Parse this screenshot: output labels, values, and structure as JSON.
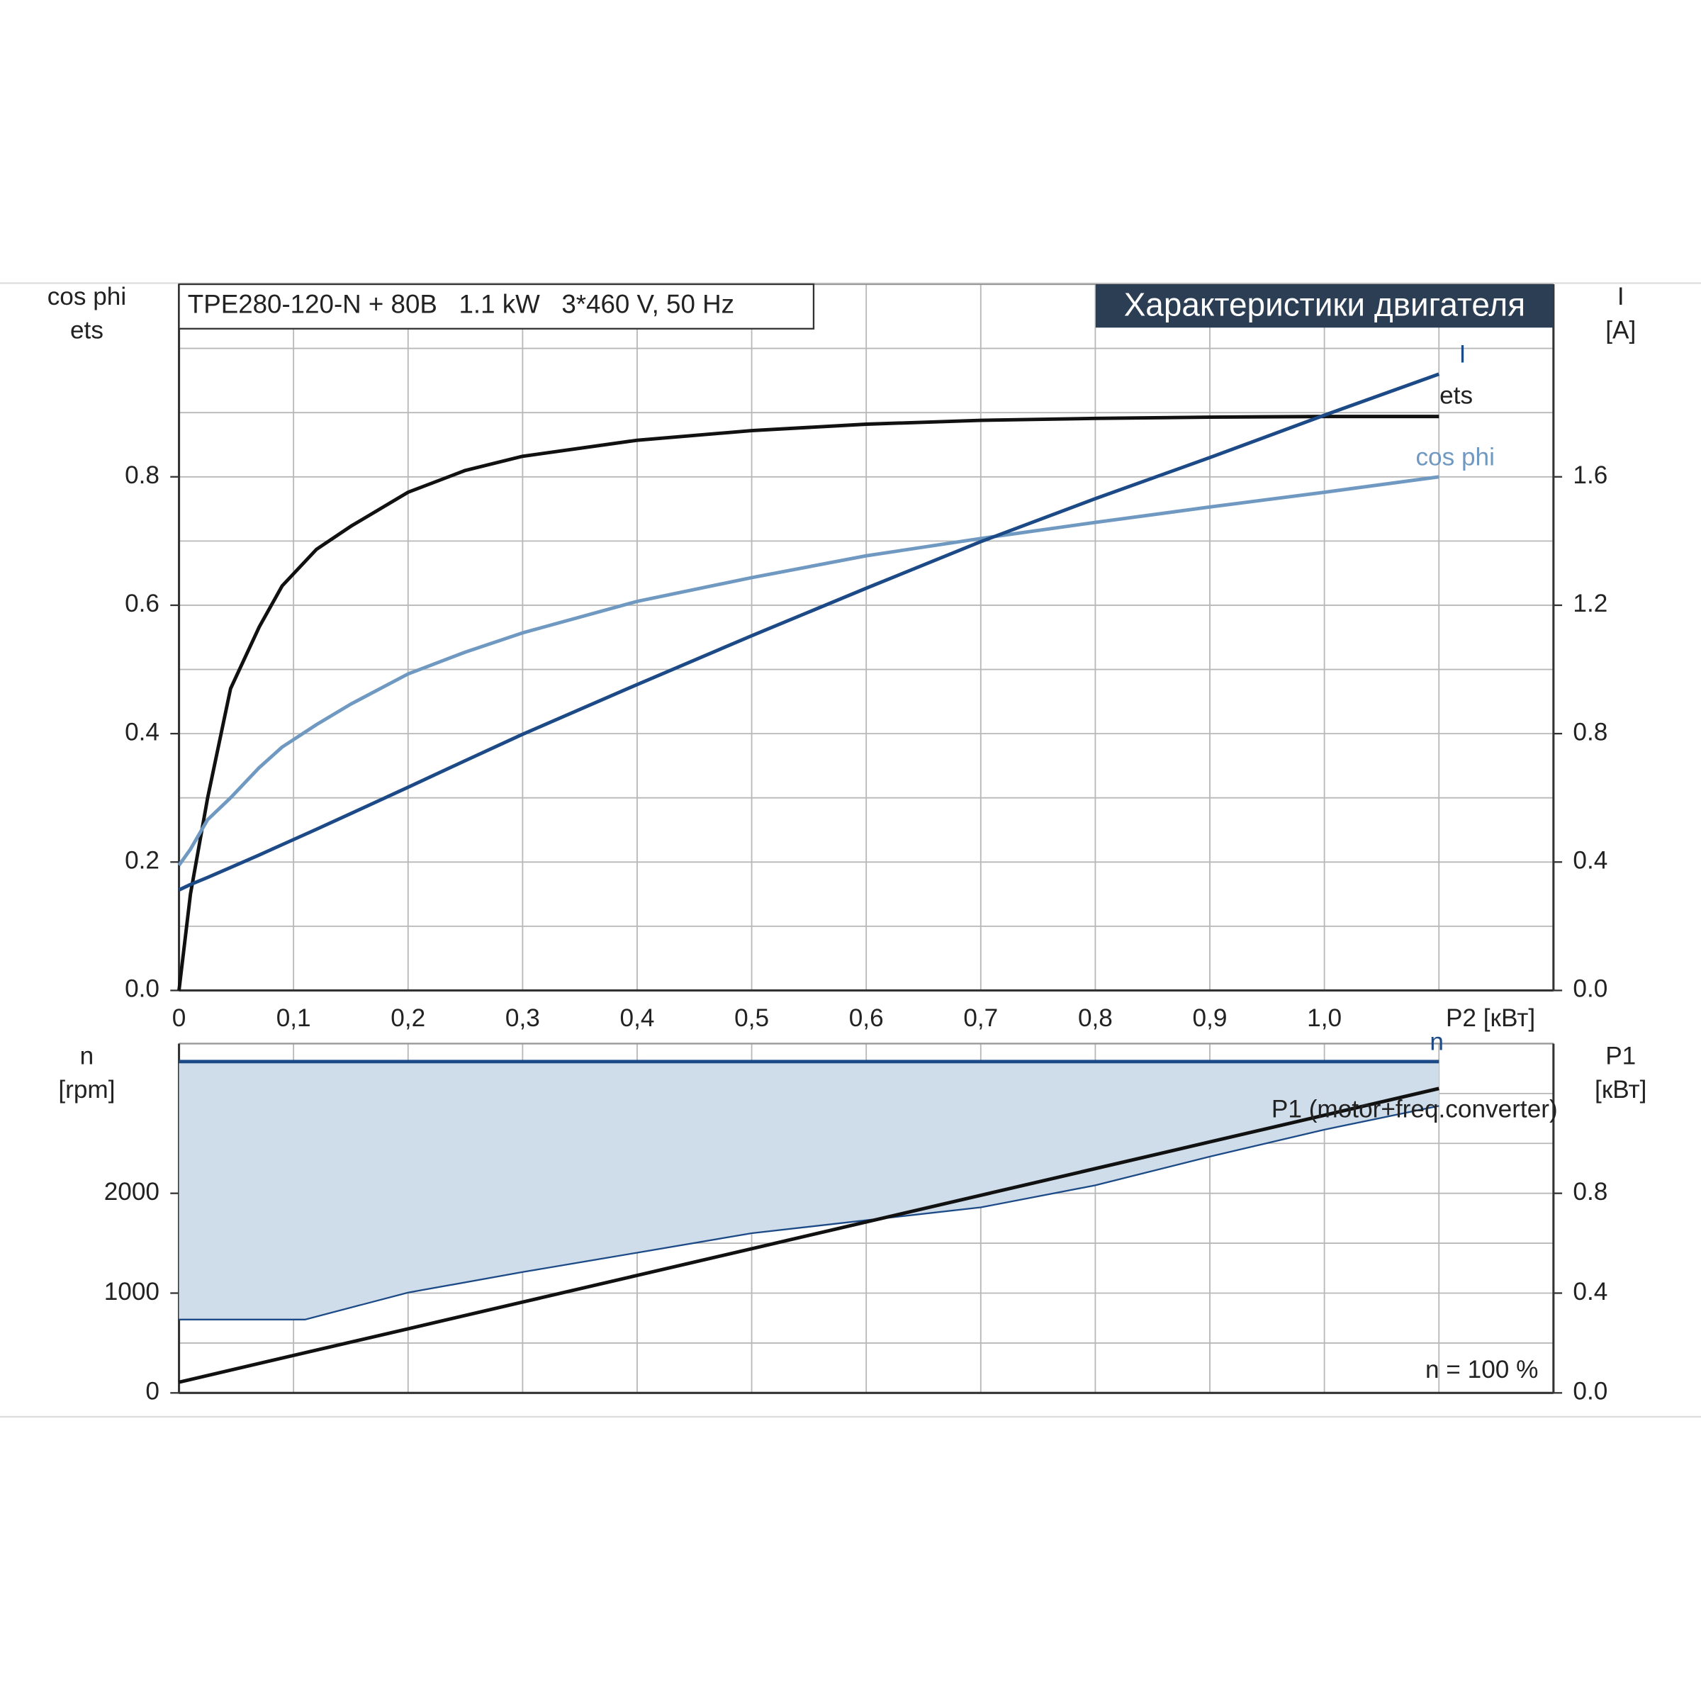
{
  "chart_data": [
    {
      "type": "line",
      "title": "Характеристики двигателя",
      "subtitle": "TPE280-120-N + 80B   1.1 kW   3*460 V, 50 Hz",
      "y_label": [
        "cos phi",
        "ets"
      ],
      "y2_label": [
        "I",
        "[A]"
      ],
      "x_label": "P2 [кВт]",
      "xlim": [
        0,
        1.2
      ],
      "xticks": [
        0,
        {
          "value": 0.1,
          "label": "0,1"
        },
        {
          "value": 0.2,
          "label": "0,2"
        },
        {
          "value": 0.3,
          "label": "0,3"
        },
        {
          "value": 0.4,
          "label": "0,4"
        },
        {
          "value": 0.5,
          "label": "0,5"
        },
        {
          "value": 0.6,
          "label": "0,6"
        },
        {
          "value": 0.7,
          "label": "0,7"
        },
        {
          "value": 0.8,
          "label": "0,8"
        },
        {
          "value": 0.9,
          "label": "0,9"
        },
        {
          "value": 1,
          "label": "1,0"
        }
      ],
      "xminor": [
        1.1
      ],
      "ylim": [
        0,
        1.1
      ],
      "yticks": [
        {
          "value": 0,
          "label": "0.0"
        },
        0.2,
        0.4,
        0.6,
        0.8
      ],
      "yminor": [
        0.1,
        0.3,
        0.5,
        0.7,
        0.9,
        1.0
      ],
      "y2lim": [
        0,
        2.2
      ],
      "y2ticks": [
        {
          "value": 0,
          "label": "0.0"
        },
        0.4,
        0.8,
        1.2,
        1.6
      ],
      "grid": true,
      "x": [
        0,
        0.01,
        0.025,
        0.045,
        0.07,
        0.09,
        0.12,
        0.15,
        0.2,
        0.25,
        0.3,
        0.4,
        0.5,
        0.6,
        0.7,
        0.8,
        0.9,
        1.0,
        1.1
      ],
      "series": [
        {
          "name": "ets",
          "color": "#111111",
          "values": [
            0,
            0.15,
            0.3,
            0.47,
            0.566,
            0.63,
            0.687,
            0.723,
            0.776,
            0.81,
            0.832,
            0.857,
            0.872,
            0.882,
            0.888,
            0.891,
            0.893,
            0.894,
            0.894
          ]
        },
        {
          "name": "cos phi",
          "color": "#7099c2",
          "values": [
            0.195,
            0.22,
            0.266,
            0.3,
            0.347,
            0.379,
            0.414,
            0.446,
            0.493,
            0.527,
            0.557,
            0.606,
            0.643,
            0.677,
            0.704,
            0.729,
            0.753,
            0.776,
            0.8
          ]
        },
        {
          "name": "I",
          "color": "#1c4a86",
          "axis": "y2",
          "values": [
            0.313,
            0.33,
            0.352,
            0.383,
            0.422,
            0.454,
            0.502,
            0.551,
            0.633,
            0.716,
            0.798,
            0.953,
            1.105,
            1.253,
            1.398,
            1.532,
            1.66,
            1.792,
            1.92
          ]
        }
      ]
    },
    {
      "type": "line",
      "y_label": [
        "n",
        "[rpm]"
      ],
      "y2_label": [
        "P1",
        "[кВт]"
      ],
      "annotation": "n = 100 %",
      "xlim": [
        0,
        1.2
      ],
      "xminor": [
        0.1,
        0.2,
        0.3,
        0.4,
        0.5,
        0.6,
        0.7,
        0.8,
        0.9,
        1.0,
        1.1
      ],
      "ylim": [
        0,
        3500
      ],
      "yticks": [
        0,
        1000,
        2000
      ],
      "yminor": [
        500,
        1500,
        2500,
        3000
      ],
      "y2lim": [
        0,
        1.4
      ],
      "y2ticks": [
        {
          "value": 0,
          "label": "0.0"
        },
        0.4,
        0.8
      ],
      "grid": true,
      "x": [
        0,
        0.11,
        0.2,
        0.3,
        0.4,
        0.5,
        0.6,
        0.7,
        0.8,
        0.9,
        1.0,
        1.1
      ],
      "series": [
        {
          "name": "n",
          "color": "#1c4a86",
          "band_color": "#cfdcea",
          "values": [
            3320,
            3320,
            3320,
            3320,
            3320,
            3320,
            3320,
            3320,
            3320,
            3320,
            3320,
            3320
          ],
          "min_values": [
            735,
            735,
            1005,
            1211,
            1405,
            1600,
            1730,
            1859,
            2080,
            2368,
            2638,
            2876
          ]
        },
        {
          "name": "P1 (motor+freq.converter)",
          "color": "#111111",
          "axis": "y2",
          "values": [
            0.043,
            0.161,
            0.257,
            0.364,
            0.471,
            0.578,
            0.685,
            0.792,
            0.899,
            1.006,
            1.113,
            1.22
          ]
        }
      ]
    }
  ]
}
